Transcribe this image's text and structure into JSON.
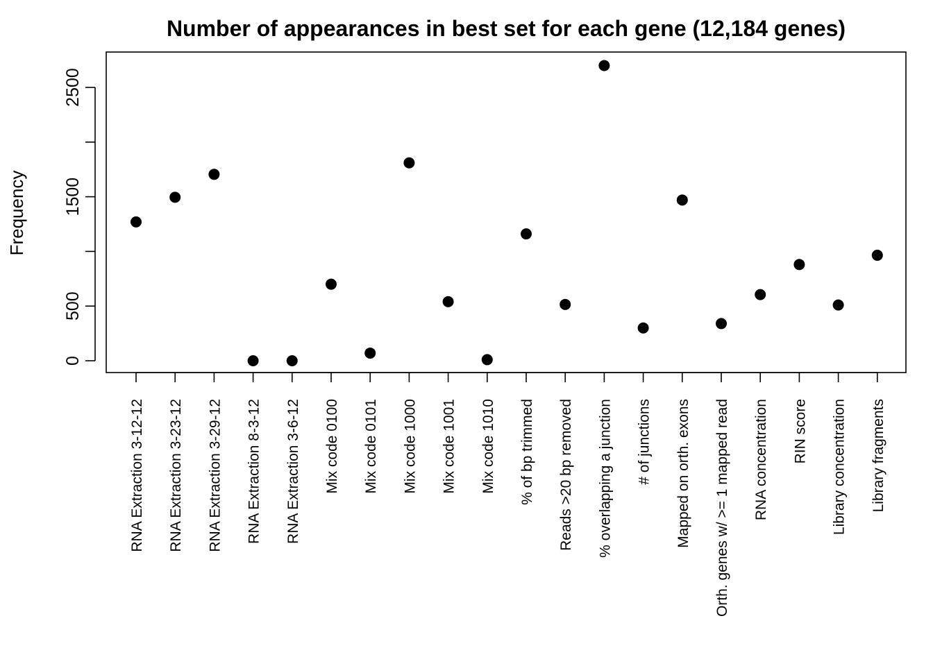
{
  "chart_data": {
    "type": "scatter",
    "title": "Number of appearances in best set for each gene (12,184 genes)",
    "xlabel": "",
    "ylabel": "Frequency",
    "categories": [
      "RNA Extraction 3-12-12",
      "RNA Extraction 3-23-12",
      "RNA Extraction 3-29-12",
      "RNA Extraction 8-3-12",
      "RNA Extraction 3-6-12",
      "Mix code 0100",
      "Mix code 0101",
      "Mix code 1000",
      "Mix code 1001",
      "Mix code 1010",
      "% of bp trimmed",
      "Reads >20 bp removed",
      "% overlapping a junction",
      "# of junctions",
      "Mapped on orth. exons",
      "Orth. genes w/ >= 1 mapped read",
      "RNA concentration",
      "RIN score",
      "Library concentration",
      "Library fragments"
    ],
    "values": [
      1270,
      1495,
      1705,
      0,
      0,
      700,
      70,
      1810,
      540,
      10,
      1160,
      515,
      2700,
      300,
      1470,
      340,
      605,
      880,
      510,
      965
    ],
    "yticks": [
      0,
      500,
      1000,
      1500,
      2000,
      2500
    ],
    "ytick_labels": [
      "0",
      "500",
      "",
      "1500",
      "",
      "2500"
    ],
    "ylim": [
      -110,
      2810
    ],
    "grid": false,
    "legend": "none"
  }
}
